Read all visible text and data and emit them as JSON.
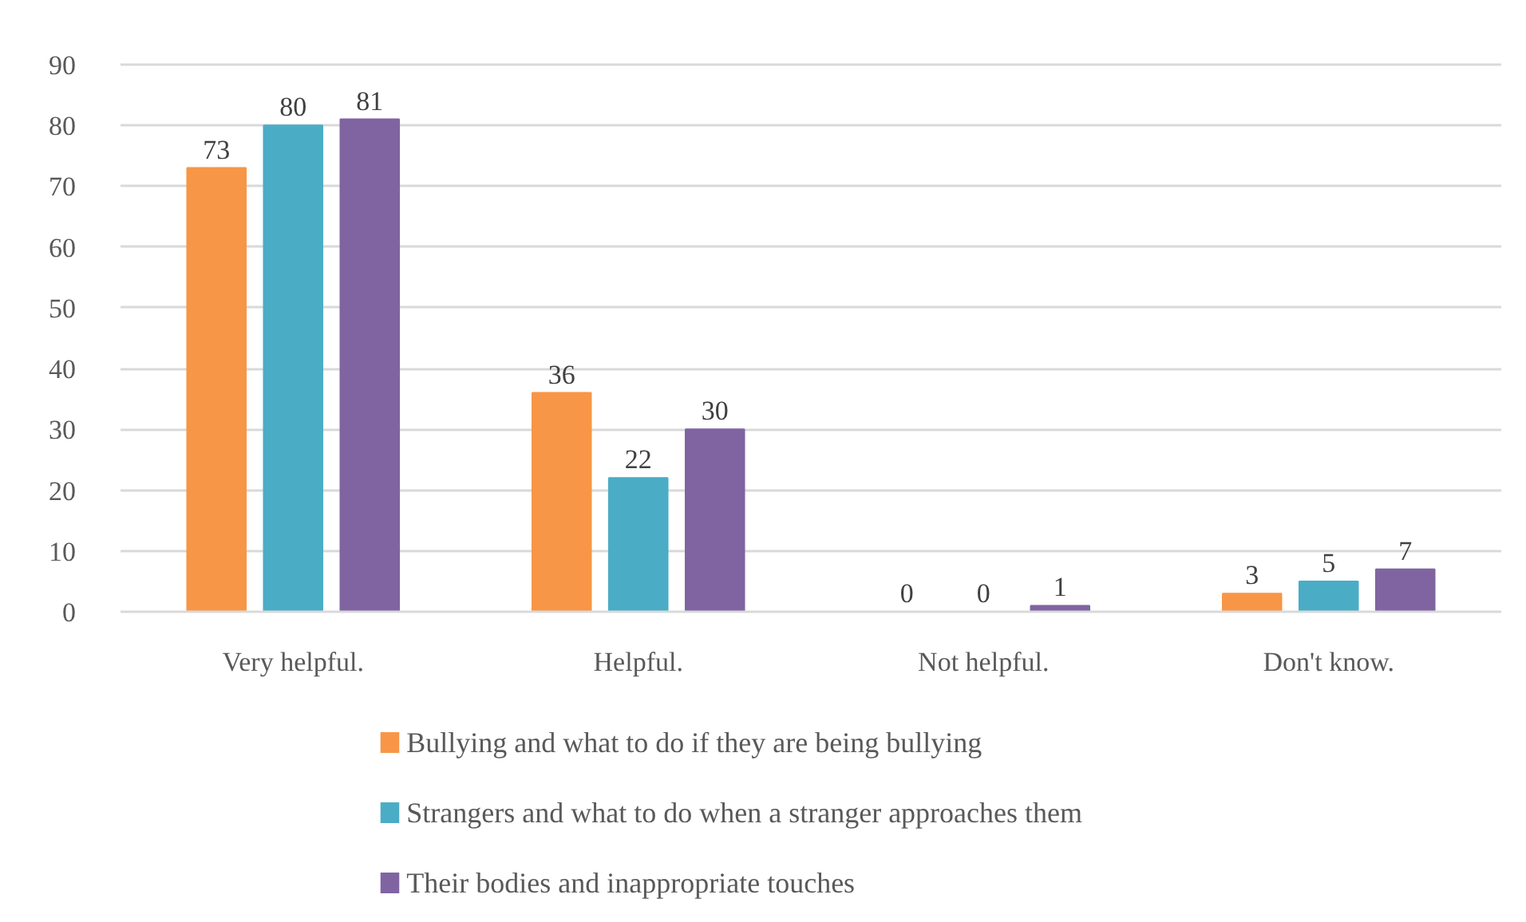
{
  "chart_data": {
    "type": "bar",
    "categories": [
      "Very helpful.",
      "Helpful.",
      "Not helpful.",
      "Don't know."
    ],
    "series": [
      {
        "name": "Bullying and what to do if they are being bullying",
        "color": "#f79646",
        "values": [
          73,
          36,
          0,
          3
        ]
      },
      {
        "name": "Strangers and what to do when a stranger approaches them",
        "color": "#4bacc6",
        "values": [
          80,
          22,
          0,
          5
        ]
      },
      {
        "name": "Their bodies and inappropriate touches",
        "color": "#8064a2",
        "values": [
          81,
          30,
          1,
          7
        ]
      }
    ],
    "ylim": [
      0,
      90
    ],
    "yticks": [
      0,
      10,
      20,
      30,
      40,
      50,
      60,
      70,
      80,
      90
    ],
    "grid": "y",
    "legend": "bottom",
    "data_labels": true
  }
}
